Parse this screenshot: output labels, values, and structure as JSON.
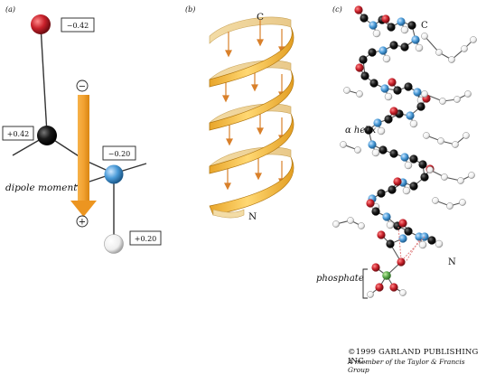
{
  "panels": {
    "a": {
      "label": "(a)"
    },
    "b": {
      "label": "(b)"
    },
    "c": {
      "label": "(c)"
    }
  },
  "panel_a": {
    "charges": {
      "oxygen": "−0.42",
      "carbon": "+0.42",
      "nitrogen": "−0.20",
      "hydrogen": "+0.20"
    },
    "minus_sign": "−",
    "plus_sign": "+",
    "dipole_label": "dipole moment",
    "colors": {
      "oxygen": "#c8202a",
      "carbon": "#111111",
      "nitrogen": "#4a9bd8",
      "hydrogen": "#f4f4f4",
      "arrow": "#f2a231"
    }
  },
  "panel_b": {
    "c_terminus": "C",
    "n_terminus": "N",
    "colors": {
      "ribbon": "#f5c04a",
      "ribbon_dark": "#d99a1e",
      "arrow": "#d9802a"
    }
  },
  "panel_c": {
    "c_terminus": "C",
    "helix_label": "α helix",
    "n_terminus": "N",
    "phosphate_label": "phosphate",
    "colors": {
      "oxygen": "#c8202a",
      "carbon": "#111111",
      "nitrogen": "#4a9bd8",
      "hydrogen": "#f4f4f4",
      "phosphorus": "#58a84a"
    }
  },
  "copyright": {
    "line1": "©1999 GARLAND PUBLISHING INC.",
    "line2": "A member of the Taylor & Francis Group"
  }
}
